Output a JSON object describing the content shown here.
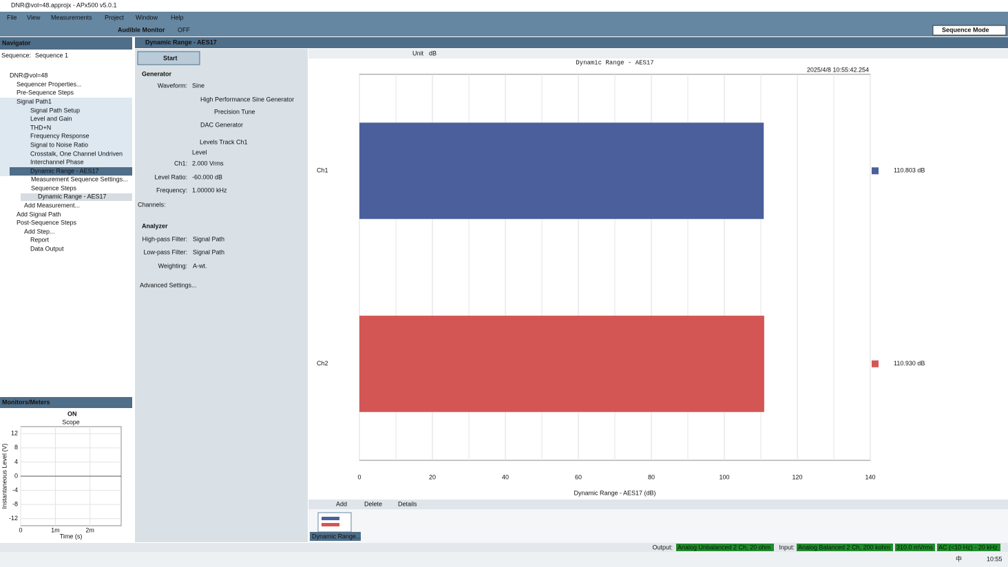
{
  "window": {
    "title": "DNR@vol=48.approjx - APx500 v5.0.1"
  },
  "menu": [
    "File",
    "View",
    "Measurements",
    "Project",
    "Window",
    "Help"
  ],
  "toolbar": {
    "audible_monitor": "Audible Monitor",
    "monitor_state": "OFF",
    "mode": "Sequence Mode"
  },
  "navigator": {
    "title": "Navigator",
    "sequence_label": "Sequence:",
    "sequence": "Sequence 1",
    "tree": [
      "DNR@vol=48",
      "Sequencer Properties...",
      "Pre-Sequence Steps",
      "Signal Path1",
      "Signal Path Setup",
      "Level and Gain",
      "THD+N",
      "Frequency Response",
      "Signal to Noise Ratio",
      "Crosstalk, One Channel Undriven",
      "Interchannel Phase",
      "Dynamic Range - AES17",
      "Measurement Sequence Settings...",
      "Sequence Steps",
      "Dynamic Range - AES17",
      "Add Measurement...",
      "Add Signal Path",
      "Post-Sequence Steps",
      "Add Step...",
      "Report",
      "Data Output"
    ]
  },
  "monitors": {
    "title": "Monitors/Meters",
    "state": "ON"
  },
  "measurement": {
    "title": "Dynamic Range - AES17",
    "start": "Start",
    "generator": {
      "heading": "Generator",
      "waveform_label": "Waveform:",
      "waveform": "Sine",
      "option1": "High Performance Sine Generator",
      "precision": "Precision Tune",
      "option2": "DAC Generator",
      "levels_track": "Levels Track Ch1",
      "level_heading": "Level",
      "ch1_label": "Ch1:",
      "ch1": "2.000 Vrms",
      "ratio_label": "Level Ratio:",
      "ratio": "-60.000 dB",
      "freq_label": "Frequency:",
      "freq": "1.00000 kHz",
      "channels": "Channels:"
    },
    "analyzer": {
      "heading": "Analyzer",
      "hp_label": "High-pass Filter:",
      "hp": "Signal Path",
      "lp_label": "Low-pass Filter:",
      "lp": "Signal Path",
      "wt_label": "Weighting:",
      "wt": "A-wt."
    },
    "advanced": "Advanced Settings..."
  },
  "graph_toolbar": {
    "unit_label": "Unit",
    "unit": "dB"
  },
  "chart_data": [
    {
      "type": "bar",
      "orientation": "horizontal",
      "title": "Dynamic Range - AES17",
      "timestamp": "2025/4/8 10:55:42.254",
      "x_label": "Dynamic Range - AES17 (dB)",
      "categories": [
        "Ch1",
        "Ch2"
      ],
      "values": [
        110.803,
        110.93
      ],
      "value_labels": [
        "110.803 dB",
        "110.930 dB"
      ],
      "colors": [
        "#4a5f9c",
        "#d45654"
      ],
      "xlim": [
        0,
        140
      ],
      "xticks": [
        0,
        20,
        40,
        60,
        80,
        100,
        120,
        140
      ],
      "minor_xticks": [
        10,
        30,
        50,
        70,
        90,
        110,
        130
      ],
      "grid": true
    },
    {
      "type": "line",
      "title": "Scope",
      "x_label": "Time (s)",
      "y_label": "Instantaneous Level (V)",
      "x": [
        0,
        0.0029
      ],
      "series": [
        {
          "values": [
            0,
            0
          ],
          "color": "#555555"
        }
      ],
      "xlim": [
        0,
        0.0029
      ],
      "xticks": [
        0,
        {
          "value": 0.001,
          "label": "1m"
        },
        {
          "value": 0.002,
          "label": "2m"
        }
      ],
      "ylim": [
        -14,
        14
      ],
      "yticks": [
        12,
        8,
        4,
        0,
        -4,
        -8,
        -12
      ],
      "grid": true
    }
  ],
  "results": {
    "add": "Add",
    "delete": "Delete",
    "details": "Details",
    "thumbnail": "Dynamic Range..."
  },
  "status": {
    "output_label": "Output:",
    "output": "Analog Unbalanced 2 Ch, 20 ohm",
    "input_label": "Input:",
    "input": "Analog Balanced 2 Ch, 200 kohm",
    "level": "310.0 mVrms",
    "bandwidth": "AC (<10 Hz) - 20 kHz"
  },
  "taskbar": {
    "ime": "中",
    "time": "10:55"
  }
}
